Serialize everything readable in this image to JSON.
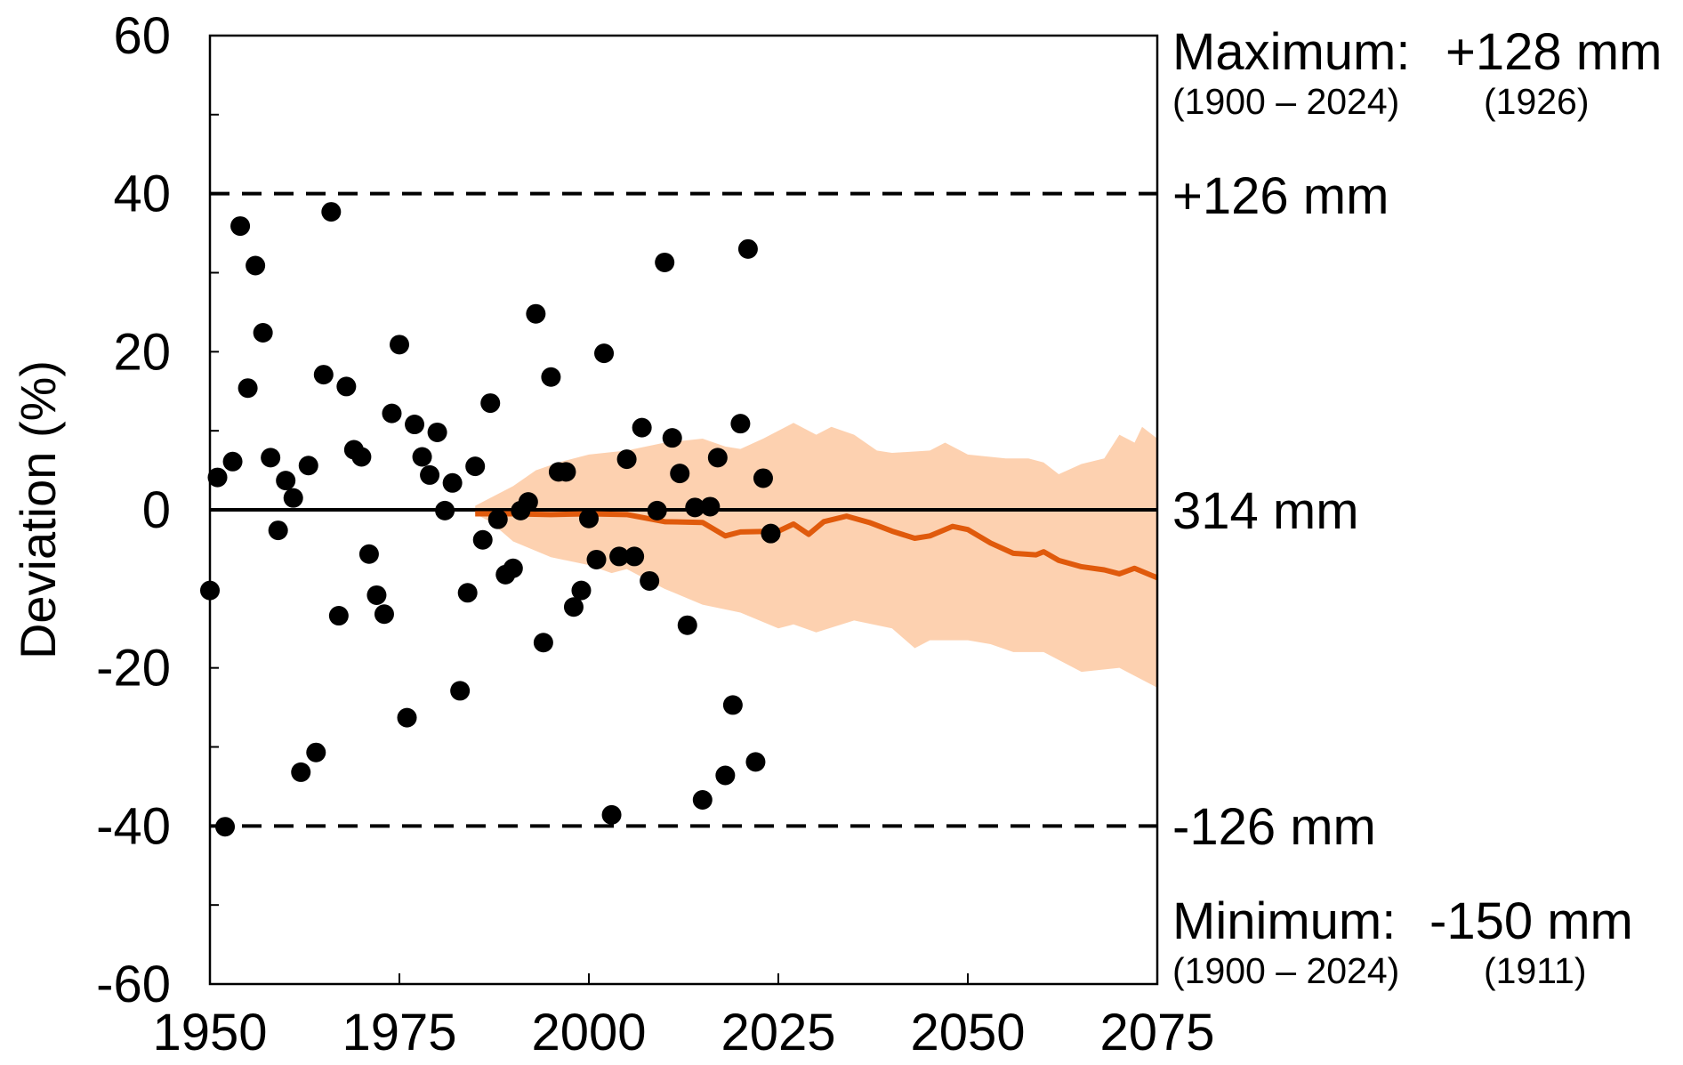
{
  "chart_data": {
    "type": "scatter",
    "ylabel": "Deviation (%)",
    "xlim": [
      1950,
      2075
    ],
    "ylim": [
      -60,
      60
    ],
    "x_ticks": [
      1950,
      1975,
      2000,
      2025,
      2050,
      2075
    ],
    "y_ticks": [
      60,
      40,
      20,
      0,
      -20,
      -40,
      -60
    ],
    "colors": {
      "points": "#000000",
      "median": "#E05A0C",
      "band": "#FDD1B0"
    },
    "reference_lines": [
      {
        "y": 40,
        "style": "dashed",
        "label": "+126 mm"
      },
      {
        "y": 0,
        "style": "solid",
        "label": "314 mm"
      },
      {
        "y": -40,
        "style": "dashed",
        "label": "-126 mm"
      }
    ],
    "annotations": {
      "maximum": {
        "label": "Maximum:",
        "value": "+128 mm",
        "period": "(1900 – 2024)",
        "year": "(1926)"
      },
      "minimum": {
        "label": "Minimum:",
        "value": "-150 mm",
        "period": "(1900 – 2024)",
        "year": "(1911)"
      }
    },
    "observations": {
      "x": [
        1950,
        1951,
        1952,
        1953,
        1954,
        1955,
        1956,
        1957,
        1958,
        1959,
        1960,
        1961,
        1962,
        1963,
        1964,
        1965,
        1966,
        1967,
        1968,
        1969,
        1970,
        1971,
        1972,
        1973,
        1974,
        1975,
        1976,
        1977,
        1978,
        1979,
        1980,
        1981,
        1982,
        1983,
        1984,
        1985,
        1986,
        1987,
        1988,
        1989,
        1990,
        1991,
        1992,
        1993,
        1994,
        1995,
        1996,
        1997,
        1998,
        1999,
        2000,
        2001,
        2002,
        2003,
        2004,
        2005,
        2006,
        2007,
        2008,
        2009,
        2010,
        2011,
        2012,
        2013,
        2014,
        2015,
        2016,
        2017,
        2018,
        2019,
        2020,
        2021,
        2022,
        2023,
        2024
      ],
      "y": [
        -10.2,
        4.1,
        -40.1,
        6.1,
        35.9,
        15.4,
        30.9,
        22.4,
        6.6,
        -2.6,
        3.7,
        1.5,
        -33.2,
        5.6,
        -30.7,
        17.1,
        37.7,
        -13.4,
        15.6,
        7.6,
        6.7,
        -5.6,
        -10.8,
        -13.2,
        12.2,
        20.9,
        -26.3,
        10.8,
        6.7,
        4.4,
        9.8,
        -0.1,
        3.4,
        -22.9,
        -10.5,
        5.5,
        -3.8,
        13.5,
        -1.2,
        -8.2,
        -7.4,
        -0.1,
        1.0,
        24.8,
        -16.8,
        16.8,
        4.8,
        4.8,
        -12.3,
        -10.2,
        -1.1,
        -6.3,
        19.8,
        -38.6,
        -5.9,
        6.4,
        -5.9,
        10.4,
        -9.0,
        -0.1,
        31.3,
        9.1,
        4.6,
        -14.6,
        0.3,
        -36.7,
        0.4,
        6.6,
        -33.6,
        -24.7,
        10.9,
        33.0,
        -31.9,
        4.0,
        -3.0
      ]
    },
    "projection_median": {
      "x": [
        1985,
        1990,
        1995,
        2000,
        2005,
        2010,
        2015,
        2018,
        2020,
        2025,
        2027,
        2029,
        2031,
        2034,
        2037,
        2040,
        2043,
        2045,
        2048,
        2050,
        2053,
        2056,
        2059,
        2060,
        2062,
        2065,
        2068,
        2070,
        2072,
        2075
      ],
      "y": [
        -0.5,
        -0.5,
        -0.6,
        -0.5,
        -0.6,
        -1.5,
        -1.6,
        -3.3,
        -2.8,
        -2.7,
        -1.8,
        -3.1,
        -1.5,
        -0.8,
        -1.6,
        -2.7,
        -3.6,
        -3.3,
        -2.1,
        -2.5,
        -4.2,
        -5.5,
        -5.7,
        -5.3,
        -6.4,
        -7.2,
        -7.6,
        -8.1,
        -7.4,
        -8.6
      ]
    },
    "projection_band_upper": {
      "x": [
        1985,
        1987,
        1990,
        1993,
        1996,
        2000,
        2005,
        2010,
        2015,
        2018,
        2020,
        2023,
        2027,
        2030,
        2032,
        2035,
        2038,
        2040,
        2045,
        2047,
        2050,
        2055,
        2058,
        2060,
        2062,
        2065,
        2068,
        2070,
        2072,
        2073,
        2075
      ],
      "y": [
        0.5,
        1.5,
        3,
        5,
        6,
        7,
        7.5,
        8.5,
        9,
        8,
        7.7,
        9,
        11,
        9.5,
        10.5,
        9.5,
        7.5,
        7.2,
        7.5,
        8.5,
        7,
        6.5,
        6.5,
        6,
        4.5,
        5.8,
        6.5,
        9.5,
        8.5,
        10.5,
        9
      ]
    },
    "projection_band_lower": {
      "x": [
        1985,
        1987,
        1990,
        1995,
        2000,
        2003,
        2005,
        2010,
        2015,
        2020,
        2025,
        2027,
        2030,
        2035,
        2040,
        2043,
        2045,
        2050,
        2053,
        2056,
        2060,
        2065,
        2070,
        2073,
        2075
      ],
      "y": [
        -0.5,
        -1.5,
        -4,
        -6,
        -7,
        -8,
        -7.5,
        -10,
        -12,
        -13,
        -15,
        -14.5,
        -15.5,
        -14,
        -15,
        -17.5,
        -16.5,
        -16.5,
        -17,
        -18,
        -18,
        -20.5,
        -20,
        -21.5,
        -22.5
      ]
    }
  }
}
